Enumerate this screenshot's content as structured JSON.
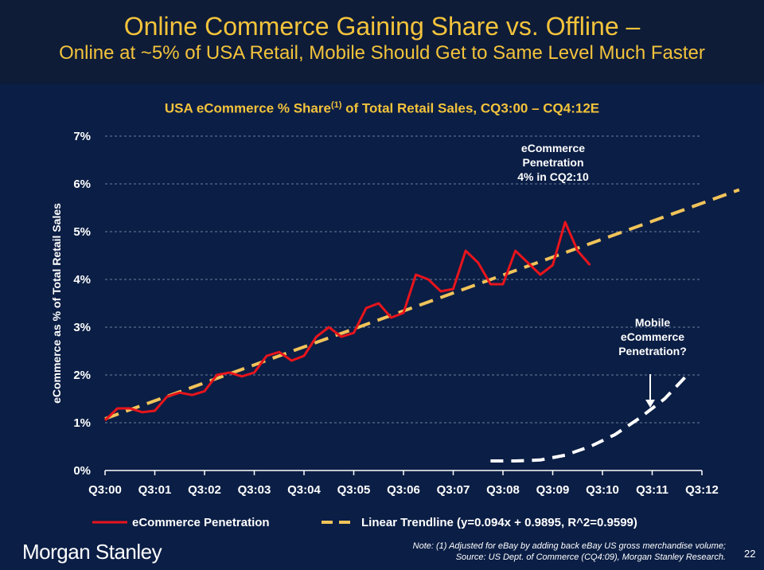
{
  "header": {
    "title": "Online Commerce Gaining Share vs. Offline –",
    "subtitle": "Online at ~5% of USA Retail, Mobile Should Get to Same Level Much Faster"
  },
  "chart_data": {
    "type": "line",
    "title_main": "USA eCommerce % Share",
    "title_sup": "(1)",
    "title_rest": " of Total Retail Sales, CQ3:00 – CQ4:12E",
    "ylabel": "eCommerce as % of Total Retail Sales",
    "xlabel": "",
    "ylim": [
      0,
      7
    ],
    "ytick_labels": [
      "0%",
      "1%",
      "2%",
      "3%",
      "4%",
      "5%",
      "6%",
      "7%"
    ],
    "xtick_labels": [
      "Q3:00",
      "Q3:01",
      "Q3:02",
      "Q3:03",
      "Q3:04",
      "Q3:05",
      "Q3:06",
      "Q3:07",
      "Q3:08",
      "Q3:09",
      "Q3:10",
      "Q3:11",
      "Q3:12"
    ],
    "grid": true,
    "series": [
      {
        "name": "eCommerce Penetration",
        "color": "#e8141c",
        "style": "solid",
        "values": [
          1.05,
          1.3,
          1.3,
          1.22,
          1.25,
          1.55,
          1.63,
          1.58,
          1.66,
          2.0,
          2.05,
          1.97,
          2.05,
          2.4,
          2.48,
          2.3,
          2.4,
          2.8,
          3.0,
          2.8,
          2.88,
          3.4,
          3.5,
          3.2,
          3.3,
          4.1,
          4.0,
          3.75,
          3.8,
          4.6,
          4.35,
          3.9,
          3.9,
          4.6,
          4.35,
          4.1,
          4.3,
          5.2,
          4.6,
          4.3
        ]
      },
      {
        "name": "Linear Trendline (y=0.094x + 0.9895, R^2=0.9599)",
        "color": "#f1c35a",
        "style": "dashed",
        "line": {
          "slope": 0.094,
          "intercept": 0.9895,
          "x_start": 1,
          "x_end": 52
        }
      },
      {
        "name": "Mobile eCommerce",
        "color": "#ffffff",
        "style": "dashed",
        "points": [
          [
            32,
            0.2
          ],
          [
            34,
            0.2
          ],
          [
            36,
            0.22
          ],
          [
            38,
            0.32
          ],
          [
            40,
            0.5
          ],
          [
            42,
            0.75
          ],
          [
            44,
            1.1
          ],
          [
            46,
            1.5
          ],
          [
            48,
            2.05
          ]
        ]
      }
    ],
    "annotations": {
      "penetration": [
        "eCommerce",
        "Penetration",
        "4% in CQ2:10"
      ],
      "mobile": [
        "Mobile",
        "eCommerce",
        "Penetration?"
      ]
    },
    "legend": {
      "placement": "bottom",
      "items": [
        "eCommerce Penetration",
        "Linear Trendline (y=0.094x + 0.9895, R^2=0.9599)"
      ]
    }
  },
  "footer": {
    "logo": "Morgan Stanley",
    "note_line1": "Note: (1) Adjusted for eBay by adding back eBay US gross merchandise volume;",
    "note_line2": "Source: US Dept. of Commerce (CQ4:09), Morgan Stanley Research.",
    "page": "22"
  },
  "colors": {
    "accent": "#f3c33b",
    "background": "#0b1e45",
    "header_bg": "#0e1c38"
  }
}
